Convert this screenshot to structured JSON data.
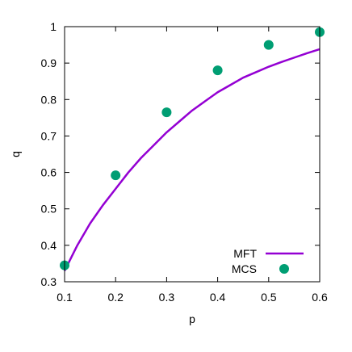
{
  "chart_data": {
    "type": "line",
    "xlabel": "p",
    "ylabel": "q",
    "xlim": [
      0.1,
      0.6
    ],
    "ylim": [
      0.3,
      1.0
    ],
    "x_ticks": [
      0.1,
      0.2,
      0.3,
      0.4,
      0.5,
      0.6
    ],
    "x_tick_labels": [
      "0.1",
      "0.2",
      "0.3",
      "0.4",
      "0.5",
      "0.6"
    ],
    "y_ticks": [
      0.3,
      0.4,
      0.5,
      0.6,
      0.7,
      0.8,
      0.9,
      1.0
    ],
    "y_tick_labels": [
      "0.3",
      "0.4",
      "0.5",
      "0.6",
      "0.7",
      "0.8",
      "0.9",
      "1"
    ],
    "grid": false,
    "legend_position": "bottom-right",
    "series": [
      {
        "name": "MFT",
        "kind": "line",
        "color": "#9400d3",
        "x": [
          0.1,
          0.125,
          0.15,
          0.175,
          0.2,
          0.225,
          0.25,
          0.275,
          0.3,
          0.325,
          0.35,
          0.375,
          0.4,
          0.425,
          0.45,
          0.475,
          0.5,
          0.525,
          0.55,
          0.575,
          0.6
        ],
        "y": [
          0.33,
          0.4,
          0.46,
          0.51,
          0.555,
          0.6,
          0.64,
          0.675,
          0.71,
          0.74,
          0.77,
          0.795,
          0.82,
          0.84,
          0.86,
          0.875,
          0.89,
          0.903,
          0.915,
          0.927,
          0.938
        ]
      },
      {
        "name": "MCS",
        "kind": "scatter",
        "color": "#009e73",
        "x": [
          0.1,
          0.2,
          0.3,
          0.4,
          0.5,
          0.6
        ],
        "y": [
          0.345,
          0.592,
          0.765,
          0.88,
          0.95,
          0.985
        ]
      }
    ]
  }
}
